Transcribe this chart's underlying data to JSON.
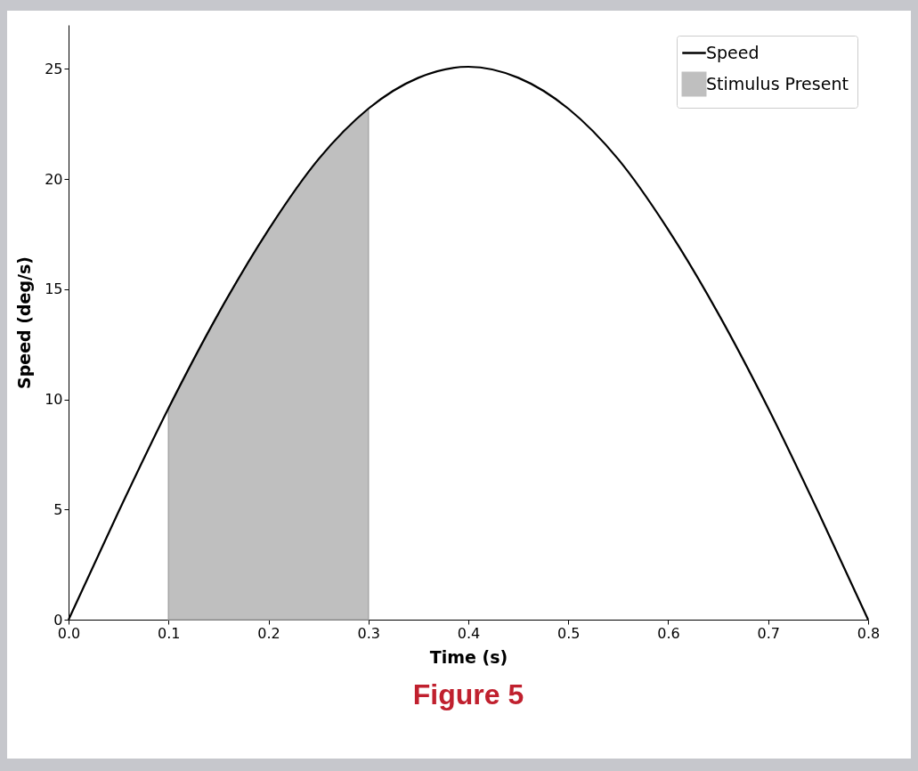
{
  "chart_data": {
    "type": "line",
    "xlabel": "Time (s)",
    "ylabel": "Speed (deg/s)",
    "x": [
      0,
      0.05,
      0.1,
      0.15,
      0.2,
      0.25,
      0.3,
      0.35,
      0.4,
      0.45,
      0.5,
      0.55,
      0.6,
      0.65,
      0.7,
      0.75,
      0.8
    ],
    "series": [
      {
        "name": "Speed",
        "color": "#000000",
        "values": [
          0,
          4.9,
          9.6,
          13.9,
          17.7,
          20.9,
          23.2,
          24.6,
          25.1,
          24.6,
          23.2,
          20.9,
          17.7,
          13.9,
          9.6,
          4.9,
          0
        ]
      },
      {
        "name": "Stimulus Present",
        "type": "area",
        "color": "#bfbfbf",
        "x": [
          0.1,
          0.15,
          0.2,
          0.25,
          0.3
        ],
        "values": [
          9.6,
          13.9,
          17.7,
          20.9,
          23.2
        ]
      }
    ],
    "xlim": [
      0,
      0.8
    ],
    "ylim": [
      0,
      27
    ],
    "xticks": [
      {
        "value": 0,
        "label": "0.0"
      },
      {
        "value": 0.1,
        "label": "0.1"
      },
      {
        "value": 0.2,
        "label": "0.2"
      },
      {
        "value": 0.3,
        "label": "0.3"
      },
      {
        "value": 0.4,
        "label": "0.4"
      },
      {
        "value": 0.5,
        "label": "0.5"
      },
      {
        "value": 0.6,
        "label": "0.6"
      },
      {
        "value": 0.7,
        "label": "0.7"
      },
      {
        "value": 0.8,
        "label": "0.8"
      }
    ],
    "yticks": [
      0,
      5,
      10,
      15,
      20,
      25
    ],
    "legend": "top right",
    "line_style": "solid",
    "annotations": [
      "Figure 5"
    ]
  }
}
